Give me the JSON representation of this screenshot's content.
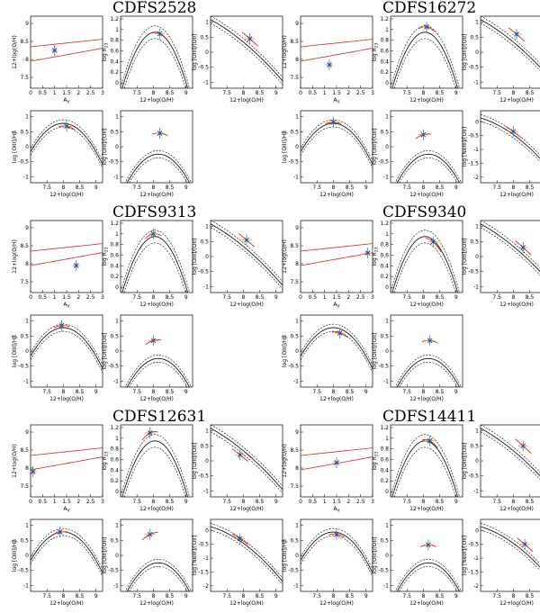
{
  "colors": {
    "model": "#000000",
    "constraint": "#e02020",
    "marker": "#2233dd",
    "errbar_a": "#20a030",
    "errbar_b": "#ff8c00",
    "errbar_c": "#c040ff"
  },
  "labels": {
    "oh": "12+log(O/H)",
    "av": "A",
    "av_sub": "V",
    "r23": "log R",
    "r23_sub": "23",
    "o3o2": "log [OIII]/[OII]",
    "o3hb": "log [OIII]/Hβ",
    "ne3o2": "log [NeIII]/[OII]"
  },
  "chart_data": [
    {
      "galaxy": "CDFS2528",
      "title": "CDFS2528",
      "panels": [
        {
          "kind": "av",
          "type": "scatter",
          "point": [
            1.0,
            8.25
          ]
        },
        {
          "kind": "r23",
          "type": "line",
          "point": [
            8.2,
            0.92
          ]
        },
        {
          "kind": "o3o2",
          "type": "line",
          "point": [
            8.2,
            0.45
          ]
        },
        {
          "kind": "o3hb",
          "type": "line",
          "point": [
            8.1,
            0.68
          ]
        },
        {
          "kind": "o3o2b",
          "type": "line",
          "point": [
            8.2,
            0.45
          ]
        }
      ]
    },
    {
      "galaxy": "CDFS16272",
      "title": "CDFS16272",
      "panels": [
        {
          "kind": "av",
          "type": "scatter",
          "point": [
            1.2,
            7.85
          ]
        },
        {
          "kind": "r23",
          "type": "line",
          "point": [
            8.1,
            1.05
          ]
        },
        {
          "kind": "o3o2",
          "type": "line",
          "point": [
            8.1,
            0.6
          ]
        },
        {
          "kind": "o3hb",
          "type": "line",
          "point": [
            8.0,
            0.82
          ]
        },
        {
          "kind": "o3o2b",
          "type": "line",
          "point": [
            8.0,
            0.4
          ]
        },
        {
          "kind": "ne3o2",
          "type": "line",
          "point": [
            8.0,
            -0.35
          ]
        }
      ]
    },
    {
      "galaxy": "CDFS9313",
      "title": "CDFS9313",
      "panels": [
        {
          "kind": "av",
          "type": "scatter",
          "point": [
            1.9,
            7.95
          ]
        },
        {
          "kind": "r23",
          "type": "line",
          "point": [
            8.0,
            1.0
          ]
        },
        {
          "kind": "o3o2",
          "type": "line",
          "point": [
            8.1,
            0.55
          ]
        },
        {
          "kind": "o3hb",
          "type": "line",
          "point": [
            7.95,
            0.85
          ]
        },
        {
          "kind": "o3o2b",
          "type": "line",
          "point": [
            8.0,
            0.35
          ]
        }
      ]
    },
    {
      "galaxy": "CDFS9340",
      "title": "CDFS9340",
      "panels": [
        {
          "kind": "av",
          "type": "scatter",
          "point": [
            2.8,
            8.3
          ]
        },
        {
          "kind": "r23",
          "type": "line",
          "point": [
            8.3,
            0.85
          ]
        },
        {
          "kind": "o3o2",
          "type": "line",
          "point": [
            8.3,
            0.3
          ]
        },
        {
          "kind": "o3hb",
          "type": "line",
          "point": [
            8.2,
            0.6
          ]
        },
        {
          "kind": "o3o2b",
          "type": "line",
          "point": [
            8.2,
            0.35
          ]
        }
      ]
    },
    {
      "galaxy": "CDFS12631",
      "title": "CDFS12631",
      "panels": [
        {
          "kind": "av",
          "type": "scatter",
          "point": [
            0.1,
            7.9
          ]
        },
        {
          "kind": "r23",
          "type": "line",
          "point": [
            7.9,
            1.1
          ]
        },
        {
          "kind": "o3o2",
          "type": "line",
          "point": [
            7.9,
            0.2
          ]
        },
        {
          "kind": "o3hb",
          "type": "line",
          "point": [
            7.9,
            0.78
          ]
        },
        {
          "kind": "o3o2b",
          "type": "line",
          "point": [
            7.9,
            0.7
          ]
        },
        {
          "kind": "ne3o2",
          "type": "line",
          "point": [
            7.9,
            -0.3
          ]
        }
      ]
    },
    {
      "galaxy": "CDFS14411",
      "title": "CDFS14411",
      "panels": [
        {
          "kind": "av",
          "type": "scatter",
          "point": [
            1.5,
            8.15
          ]
        },
        {
          "kind": "r23",
          "type": "line",
          "point": [
            8.2,
            0.95
          ]
        },
        {
          "kind": "o3o2",
          "type": "line",
          "point": [
            8.3,
            0.5
          ]
        },
        {
          "kind": "o3hb",
          "type": "line",
          "point": [
            8.1,
            0.7
          ]
        },
        {
          "kind": "o3o2b",
          "type": "line",
          "point": [
            8.15,
            0.35
          ]
        },
        {
          "kind": "ne3o2",
          "type": "line",
          "point": [
            8.35,
            -0.5
          ]
        }
      ]
    }
  ]
}
